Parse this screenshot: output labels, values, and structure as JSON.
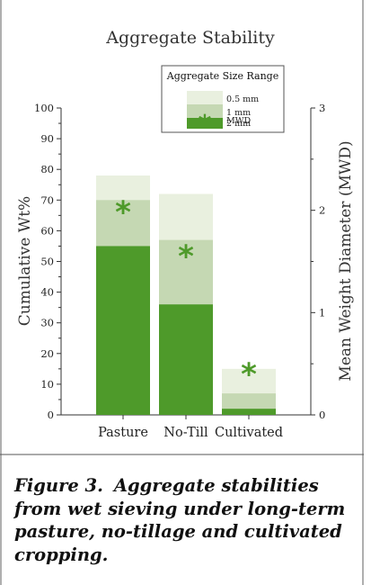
{
  "chart_data": {
    "type": "bar",
    "title": "Aggregate Stability",
    "ylabel": "Cumulative Wt%",
    "y2label": "Mean Weight Diameter (MWD)",
    "ylim": [
      0,
      100
    ],
    "y2lim": [
      0,
      3
    ],
    "yticks": [
      "0",
      "10",
      "20",
      "30",
      "40",
      "50",
      "60",
      "70",
      "80",
      "90",
      "100"
    ],
    "y2ticks": [
      "0",
      "1",
      "2",
      "3"
    ],
    "categories": [
      "Pasture",
      "No-Till",
      "Cultivated"
    ],
    "legend_title": "Aggregate Size Range",
    "legend_placement": "top-right",
    "series": [
      {
        "name": "2 mm",
        "color": "#4e9a2a",
        "values": [
          55,
          36,
          2
        ]
      },
      {
        "name": "1 mm",
        "color": "#c5d8b3",
        "values": [
          70,
          57,
          7
        ]
      },
      {
        "name": "0.5 mm",
        "color": "#e9f0df",
        "values": [
          78,
          72,
          15
        ]
      }
    ],
    "mwd": {
      "name": "MWD",
      "marker": "*",
      "color": "#4e9a2a",
      "values": [
        2.0,
        1.57,
        0.42
      ]
    }
  },
  "caption": {
    "label": "Figure 3.",
    "text": "Aggregate stabilities from wet sieving under long-term pasture, no-tillage and cultivated cropping."
  },
  "colors": {
    "axis": "#333333",
    "frame": "#7a7a7a"
  }
}
